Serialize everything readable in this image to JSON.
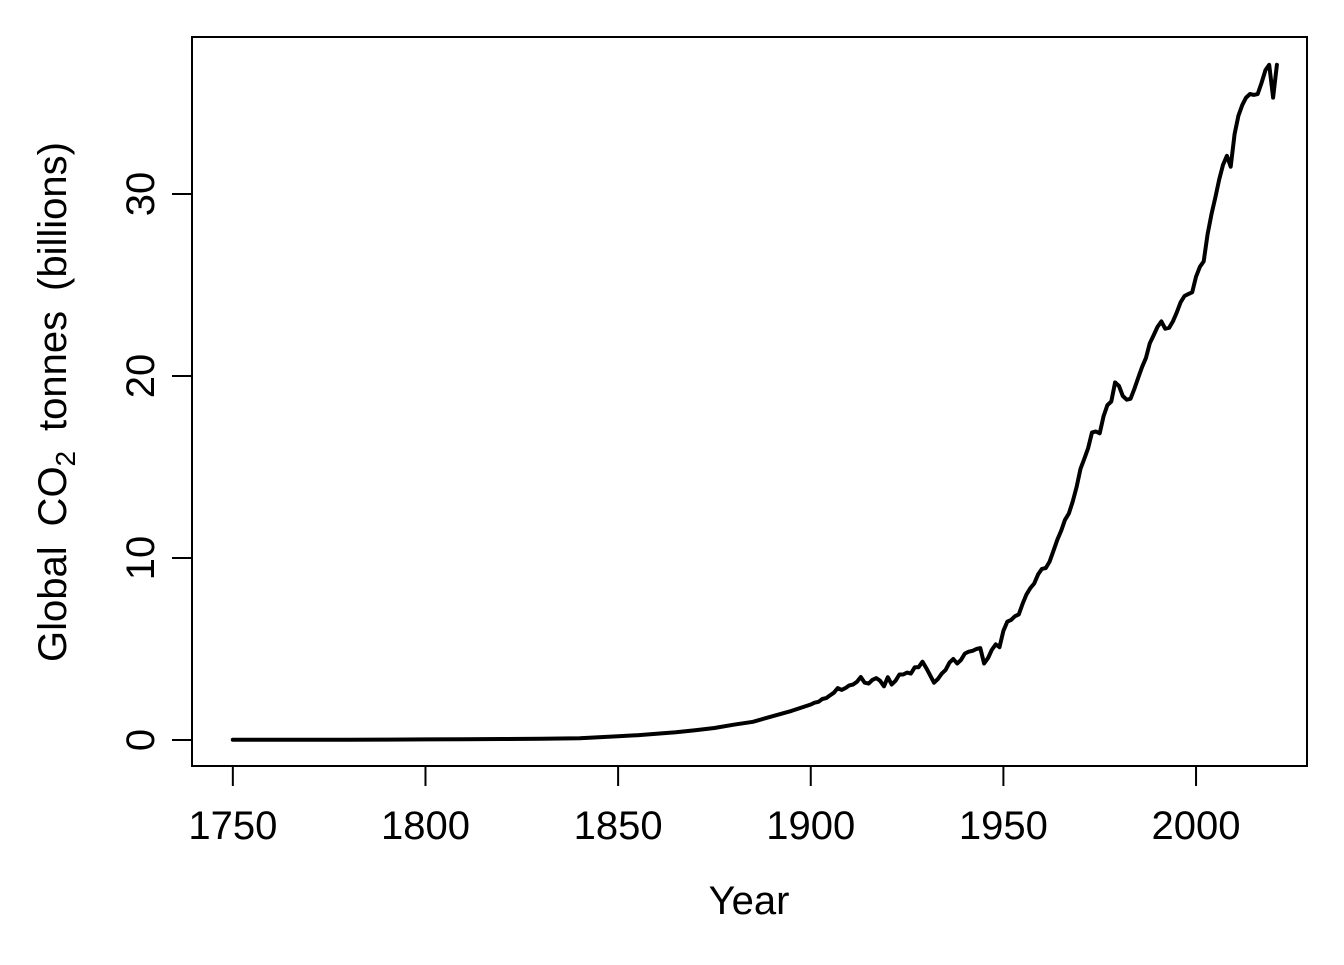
{
  "figure": {
    "background": "#ffffff",
    "line_color": "#000000",
    "line_width": 4,
    "box_color": "#000000"
  },
  "chart_data": {
    "type": "line",
    "title": "",
    "xlabel": "Year",
    "ylabel": "Global CO2 tonnes (billions)",
    "ylabel_parts": [
      "Global CO",
      "2",
      " tonnes (billions)"
    ],
    "xlim": [
      1739.4,
      2028.8
    ],
    "ylim": [
      -1.43,
      38.63
    ],
    "xticks": [
      1750,
      1800,
      1850,
      1900,
      1950,
      2000
    ],
    "yticks": [
      0,
      10,
      20,
      30
    ],
    "grid": false,
    "legend": null,
    "series": [
      {
        "name": "Global CO2 tonnes (billions)",
        "x": [
          1750,
          1760,
          1770,
          1780,
          1790,
          1800,
          1810,
          1820,
          1830,
          1840,
          1850,
          1855,
          1860,
          1865,
          1870,
          1875,
          1880,
          1885,
          1890,
          1895,
          1900,
          1901,
          1902,
          1903,
          1904,
          1905,
          1906,
          1907,
          1908,
          1909,
          1910,
          1911,
          1912,
          1913,
          1914,
          1915,
          1916,
          1917,
          1918,
          1919,
          1920,
          1921,
          1922,
          1923,
          1924,
          1925,
          1926,
          1927,
          1928,
          1929,
          1930,
          1931,
          1932,
          1933,
          1934,
          1935,
          1936,
          1937,
          1938,
          1939,
          1940,
          1941,
          1942,
          1943,
          1944,
          1945,
          1946,
          1947,
          1948,
          1949,
          1950,
          1951,
          1952,
          1953,
          1954,
          1955,
          1956,
          1957,
          1958,
          1959,
          1960,
          1961,
          1962,
          1963,
          1964,
          1965,
          1966,
          1967,
          1968,
          1969,
          1970,
          1971,
          1972,
          1973,
          1974,
          1975,
          1976,
          1977,
          1978,
          1979,
          1980,
          1981,
          1982,
          1983,
          1984,
          1985,
          1986,
          1987,
          1988,
          1989,
          1990,
          1991,
          1992,
          1993,
          1994,
          1995,
          1996,
          1997,
          1998,
          1999,
          2000,
          2001,
          2002,
          2003,
          2004,
          2005,
          2006,
          2007,
          2008,
          2009,
          2010,
          2011,
          2012,
          2013,
          2014,
          2015,
          2016,
          2017,
          2018,
          2019,
          2020,
          2021
        ],
        "y": [
          0.009,
          0.011,
          0.013,
          0.016,
          0.021,
          0.03,
          0.037,
          0.051,
          0.072,
          0.1,
          0.2,
          0.26,
          0.34,
          0.42,
          0.53,
          0.66,
          0.84,
          1.0,
          1.3,
          1.6,
          1.95,
          2.05,
          2.1,
          2.25,
          2.3,
          2.45,
          2.6,
          2.85,
          2.75,
          2.85,
          3.0,
          3.05,
          3.2,
          3.46,
          3.15,
          3.1,
          3.3,
          3.4,
          3.25,
          2.95,
          3.45,
          3.05,
          3.25,
          3.6,
          3.6,
          3.7,
          3.65,
          4.0,
          4.0,
          4.3,
          3.95,
          3.55,
          3.15,
          3.35,
          3.65,
          3.85,
          4.25,
          4.45,
          4.2,
          4.4,
          4.75,
          4.85,
          4.9,
          5.0,
          5.05,
          4.2,
          4.5,
          4.95,
          5.25,
          5.1,
          6.0,
          6.5,
          6.6,
          6.8,
          6.9,
          7.5,
          8.0,
          8.35,
          8.6,
          9.1,
          9.4,
          9.45,
          9.8,
          10.4,
          11.0,
          11.5,
          12.1,
          12.45,
          13.1,
          13.9,
          14.9,
          15.45,
          16.05,
          16.9,
          16.95,
          16.85,
          17.8,
          18.4,
          18.6,
          19.65,
          19.45,
          18.9,
          18.7,
          18.75,
          19.3,
          19.9,
          20.5,
          21.0,
          21.8,
          22.25,
          22.7,
          23.0,
          22.6,
          22.65,
          23.0,
          23.5,
          24.05,
          24.4,
          24.5,
          24.6,
          25.45,
          26.0,
          26.3,
          27.8,
          28.9,
          29.8,
          30.8,
          31.6,
          32.1,
          31.5,
          33.3,
          34.3,
          34.9,
          35.3,
          35.5,
          35.45,
          35.5,
          36.1,
          36.8,
          37.1,
          35.3,
          37.1
        ]
      }
    ]
  }
}
